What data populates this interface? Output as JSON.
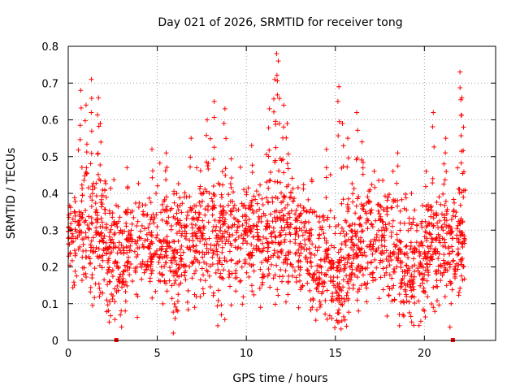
{
  "chart_data": {
    "type": "scatter",
    "title": "Day 021 of 2026, SRMTID for receiver tong",
    "xlabel": "GPS time / hours",
    "ylabel": "SRMTID / TECUs",
    "xlim": [
      0,
      24
    ],
    "ylim": [
      0,
      0.8
    ],
    "xticks": [
      0,
      5,
      10,
      15,
      20
    ],
    "xtick_labels": [
      "0",
      "5",
      "10",
      "15",
      "20"
    ],
    "yticks": [
      0,
      0.1,
      0.2,
      0.3,
      0.4,
      0.5,
      0.6,
      0.7,
      0.8
    ],
    "ytick_labels": [
      "0",
      "0.1",
      "0.2",
      "0.3",
      "0.4",
      "0.5",
      "0.6",
      "0.7",
      "0.8"
    ],
    "grid": true,
    "marker": "+",
    "color": "#ff0000",
    "data_range_hours": [
      0,
      22.3
    ],
    "gap_markers": [
      {
        "x": 2.7,
        "y": 0
      },
      {
        "x": 21.6,
        "y": 0
      }
    ],
    "density_profile": [
      {
        "x": 0.0,
        "median": 0.3,
        "spread": 0.07
      },
      {
        "x": 1.0,
        "median": 0.32,
        "spread": 0.09
      },
      {
        "x": 2.0,
        "median": 0.27,
        "spread": 0.09
      },
      {
        "x": 3.0,
        "median": 0.22,
        "spread": 0.07
      },
      {
        "x": 4.0,
        "median": 0.27,
        "spread": 0.07
      },
      {
        "x": 5.0,
        "median": 0.28,
        "spread": 0.07
      },
      {
        "x": 6.0,
        "median": 0.24,
        "spread": 0.08
      },
      {
        "x": 7.0,
        "median": 0.27,
        "spread": 0.08
      },
      {
        "x": 8.0,
        "median": 0.28,
        "spread": 0.09
      },
      {
        "x": 9.0,
        "median": 0.29,
        "spread": 0.08
      },
      {
        "x": 10.0,
        "median": 0.29,
        "spread": 0.08
      },
      {
        "x": 11.0,
        "median": 0.27,
        "spread": 0.08
      },
      {
        "x": 12.0,
        "median": 0.31,
        "spread": 0.09
      },
      {
        "x": 13.0,
        "median": 0.28,
        "spread": 0.07
      },
      {
        "x": 14.0,
        "median": 0.23,
        "spread": 0.08
      },
      {
        "x": 15.0,
        "median": 0.19,
        "spread": 0.08
      },
      {
        "x": 16.0,
        "median": 0.26,
        "spread": 0.08
      },
      {
        "x": 17.0,
        "median": 0.28,
        "spread": 0.08
      },
      {
        "x": 18.0,
        "median": 0.25,
        "spread": 0.08
      },
      {
        "x": 19.0,
        "median": 0.22,
        "spread": 0.08
      },
      {
        "x": 20.0,
        "median": 0.22,
        "spread": 0.07
      },
      {
        "x": 21.0,
        "median": 0.26,
        "spread": 0.08
      },
      {
        "x": 22.0,
        "median": 0.28,
        "spread": 0.08
      }
    ],
    "peaks": [
      {
        "x": 0.7,
        "y": 0.68
      },
      {
        "x": 1.0,
        "y": 0.64
      },
      {
        "x": 1.3,
        "y": 0.71
      },
      {
        "x": 1.7,
        "y": 0.66
      },
      {
        "x": 1.8,
        "y": 0.59
      },
      {
        "x": 3.3,
        "y": 0.47
      },
      {
        "x": 4.7,
        "y": 0.52
      },
      {
        "x": 5.5,
        "y": 0.51
      },
      {
        "x": 6.9,
        "y": 0.55
      },
      {
        "x": 7.8,
        "y": 0.6
      },
      {
        "x": 8.2,
        "y": 0.65
      },
      {
        "x": 8.8,
        "y": 0.63
      },
      {
        "x": 10.3,
        "y": 0.53
      },
      {
        "x": 11.3,
        "y": 0.63
      },
      {
        "x": 11.6,
        "y": 0.71
      },
      {
        "x": 11.7,
        "y": 0.78
      },
      {
        "x": 11.8,
        "y": 0.76
      },
      {
        "x": 12.1,
        "y": 0.64
      },
      {
        "x": 12.3,
        "y": 0.59
      },
      {
        "x": 14.5,
        "y": 0.52
      },
      {
        "x": 15.2,
        "y": 0.69
      },
      {
        "x": 15.4,
        "y": 0.59
      },
      {
        "x": 15.7,
        "y": 0.55
      },
      {
        "x": 16.2,
        "y": 0.62
      },
      {
        "x": 16.5,
        "y": 0.54
      },
      {
        "x": 18.5,
        "y": 0.51
      },
      {
        "x": 20.1,
        "y": 0.46
      },
      {
        "x": 20.5,
        "y": 0.62
      },
      {
        "x": 21.1,
        "y": 0.48
      },
      {
        "x": 21.2,
        "y": 0.55
      },
      {
        "x": 22.0,
        "y": 0.73
      },
      {
        "x": 22.1,
        "y": 0.66
      },
      {
        "x": 22.2,
        "y": 0.58
      }
    ],
    "dips": [
      {
        "x": 2.3,
        "y": 0.05
      },
      {
        "x": 3.2,
        "y": 0.08
      },
      {
        "x": 5.9,
        "y": 0.02
      },
      {
        "x": 6.0,
        "y": 0.06
      },
      {
        "x": 7.1,
        "y": 0.09
      },
      {
        "x": 8.4,
        "y": 0.04
      },
      {
        "x": 8.6,
        "y": 0.07
      },
      {
        "x": 10.8,
        "y": 0.09
      },
      {
        "x": 13.7,
        "y": 0.09
      },
      {
        "x": 14.8,
        "y": 0.06
      },
      {
        "x": 15.2,
        "y": 0.05
      },
      {
        "x": 16.3,
        "y": 0.08
      },
      {
        "x": 18.6,
        "y": 0.04
      },
      {
        "x": 18.8,
        "y": 0.07
      },
      {
        "x": 20.0,
        "y": 0.08
      },
      {
        "x": 20.5,
        "y": 0.09
      },
      {
        "x": 21.5,
        "y": 0.1
      }
    ],
    "sampling": {
      "points_per_hour": 95,
      "seed": 21
    }
  }
}
